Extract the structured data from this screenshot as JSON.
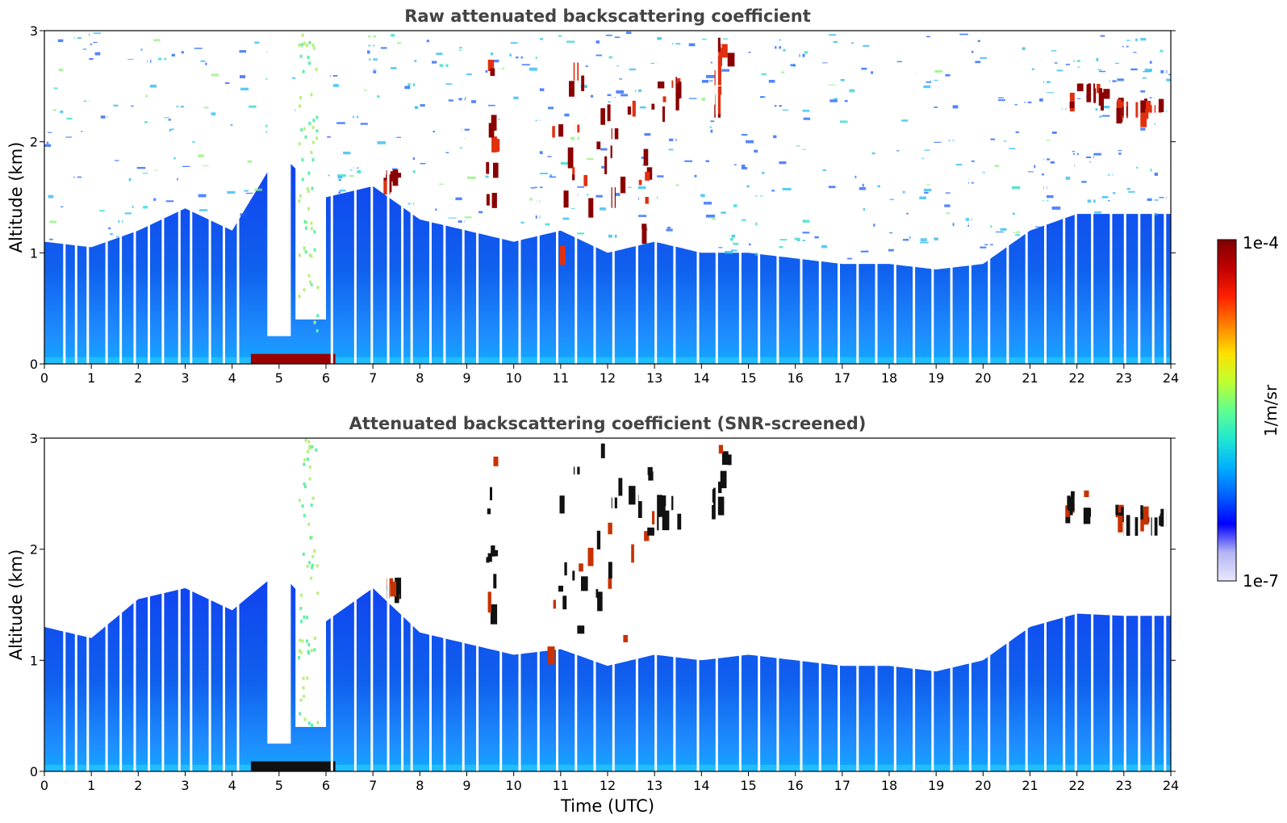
{
  "chart_data": [
    {
      "type": "heatmap",
      "title": "Raw attenuated backscattering coefficient",
      "xlabel": "",
      "ylabel": "Altitude (km)",
      "xlim": [
        0,
        24
      ],
      "ylim": [
        0,
        3
      ],
      "x_ticks": [
        "0",
        "1",
        "2",
        "3",
        "4",
        "5",
        "6",
        "7",
        "8",
        "9",
        "10",
        "11",
        "12",
        "13",
        "14",
        "15",
        "16",
        "17",
        "18",
        "19",
        "20",
        "21",
        "22",
        "23",
        "24"
      ],
      "y_ticks": [
        "0",
        "1",
        "2",
        "3"
      ],
      "boundary_layer_top_km": [
        [
          0,
          1.1
        ],
        [
          1,
          1.05
        ],
        [
          2,
          1.2
        ],
        [
          3,
          1.4
        ],
        [
          4,
          1.2
        ],
        [
          5,
          1.9
        ],
        [
          6,
          1.5
        ],
        [
          7,
          1.6
        ],
        [
          8,
          1.3
        ],
        [
          9,
          1.2
        ],
        [
          10,
          1.1
        ],
        [
          11,
          1.2
        ],
        [
          12,
          1.0
        ],
        [
          13,
          1.1
        ],
        [
          14,
          1.0
        ],
        [
          15,
          1.0
        ],
        [
          16,
          0.95
        ],
        [
          17,
          0.9
        ],
        [
          18,
          0.9
        ],
        [
          19,
          0.85
        ],
        [
          20,
          0.9
        ],
        [
          21,
          1.2
        ],
        [
          22,
          1.35
        ],
        [
          23,
          1.35
        ],
        [
          24,
          1.35
        ]
      ],
      "clouds": [
        {
          "x": [
            9.4,
            9.6
          ],
          "y": [
            1.5,
            2.95
          ]
        },
        {
          "x": [
            7.2,
            7.5
          ],
          "y": [
            1.65,
            1.75
          ]
        },
        {
          "x": [
            10.7,
            11.4
          ],
          "y": [
            0.95,
            2.9
          ]
        },
        {
          "x": [
            11.4,
            12.1
          ],
          "y": [
            1.1,
            3.0
          ]
        },
        {
          "x": [
            12.2,
            12.9
          ],
          "y": [
            1.15,
            2.8
          ]
        },
        {
          "x": [
            12.9,
            13.5
          ],
          "y": [
            2.3,
            2.6
          ]
        },
        {
          "x": [
            14.2,
            14.6
          ],
          "y": [
            2.3,
            3.0
          ]
        },
        {
          "x": [
            21.7,
            22.6
          ],
          "y": [
            2.35,
            2.55
          ]
        },
        {
          "x": [
            22.8,
            23.0
          ],
          "y": [
            2.3,
            2.4
          ]
        },
        {
          "x": [
            23.2,
            23.8
          ],
          "y": [
            2.28,
            2.4
          ]
        }
      ],
      "rain_column": {
        "x": [
          4.4,
          6.2
        ],
        "y": [
          0,
          3.0
        ]
      }
    },
    {
      "type": "heatmap",
      "title": "Attenuated backscattering coefficient (SNR-screened)",
      "xlabel": "Time (UTC)",
      "ylabel": "Altitude (km)",
      "xlim": [
        0,
        24
      ],
      "ylim": [
        0,
        3
      ],
      "x_ticks": [
        "0",
        "1",
        "2",
        "3",
        "4",
        "5",
        "6",
        "7",
        "8",
        "9",
        "10",
        "11",
        "12",
        "13",
        "14",
        "15",
        "16",
        "17",
        "18",
        "19",
        "20",
        "21",
        "22",
        "23",
        "24"
      ],
      "y_ticks": [
        "0",
        "1",
        "2",
        "3"
      ],
      "boundary_layer_top_km": [
        [
          0,
          1.3
        ],
        [
          1,
          1.2
        ],
        [
          2,
          1.55
        ],
        [
          3,
          1.65
        ],
        [
          4,
          1.45
        ],
        [
          5,
          1.8
        ],
        [
          6,
          1.35
        ],
        [
          7,
          1.65
        ],
        [
          8,
          1.25
        ],
        [
          9,
          1.15
        ],
        [
          10,
          1.05
        ],
        [
          11,
          1.1
        ],
        [
          12,
          0.95
        ],
        [
          13,
          1.05
        ],
        [
          14,
          1.0
        ],
        [
          15,
          1.05
        ],
        [
          16,
          1.0
        ],
        [
          17,
          0.95
        ],
        [
          18,
          0.95
        ],
        [
          19,
          0.9
        ],
        [
          20,
          1.0
        ],
        [
          21,
          1.3
        ],
        [
          22,
          1.42
        ],
        [
          23,
          1.4
        ],
        [
          24,
          1.4
        ]
      ],
      "clouds": [
        {
          "x": [
            9.4,
            9.6
          ],
          "y": [
            1.5,
            2.95
          ]
        },
        {
          "x": [
            7.2,
            7.5
          ],
          "y": [
            1.65,
            1.75
          ]
        },
        {
          "x": [
            10.7,
            11.4
          ],
          "y": [
            0.95,
            2.9
          ]
        },
        {
          "x": [
            11.4,
            12.1
          ],
          "y": [
            1.1,
            3.0
          ]
        },
        {
          "x": [
            12.2,
            12.9
          ],
          "y": [
            1.15,
            2.8
          ]
        },
        {
          "x": [
            12.9,
            13.5
          ],
          "y": [
            2.3,
            2.6
          ]
        },
        {
          "x": [
            14.2,
            14.6
          ],
          "y": [
            2.3,
            2.95
          ]
        },
        {
          "x": [
            21.7,
            22.6
          ],
          "y": [
            2.35,
            2.55
          ]
        },
        {
          "x": [
            22.8,
            23.0
          ],
          "y": [
            2.3,
            2.4
          ]
        },
        {
          "x": [
            23.2,
            23.8
          ],
          "y": [
            2.28,
            2.4
          ]
        }
      ],
      "rain_column": {
        "x": [
          4.4,
          6.2
        ],
        "y": [
          0,
          3.0
        ]
      }
    }
  ],
  "colorbar": {
    "label": "1/m/sr",
    "max_label": "1e-4",
    "min_label": "1e-7",
    "colormap": "jet",
    "colors": [
      "#e8e8fa",
      "#b4b4f5",
      "#0000ff",
      "#0060ff",
      "#00b0ff",
      "#20e8d0",
      "#60ff90",
      "#c0ff30",
      "#ffe000",
      "#ff8000",
      "#ff2000",
      "#c00000",
      "#800000"
    ]
  }
}
